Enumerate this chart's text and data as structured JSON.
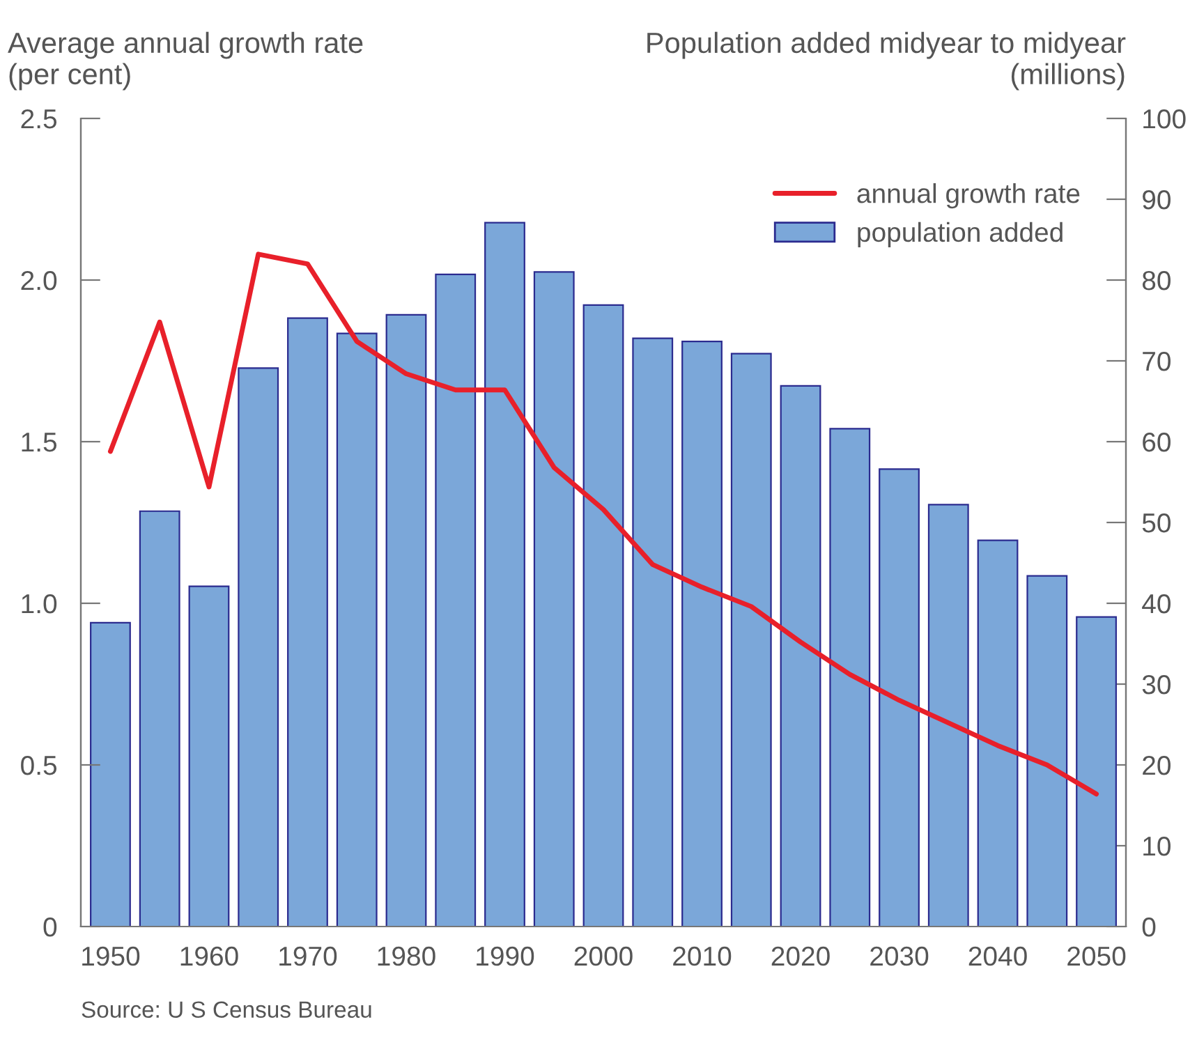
{
  "chart_data": {
    "type": "bar",
    "ylabel": "Average annual growth rate\n(per cent)",
    "y2label": "Population added midyear to midyear\n(millions)",
    "categories": [
      "1950",
      null,
      "1960",
      null,
      "1970",
      null,
      "1980",
      null,
      "1990",
      null,
      "2000",
      null,
      "2010",
      null,
      "2020",
      null,
      "2030",
      null,
      "2040",
      null,
      "2050"
    ],
    "series": [
      {
        "name": "annual growth rate",
        "type": "line",
        "color": "#e8202a",
        "values": [
          1.47,
          1.87,
          1.36,
          2.08,
          2.05,
          1.81,
          1.71,
          1.66,
          1.66,
          1.42,
          1.29,
          1.12,
          1.05,
          0.99,
          0.88,
          0.78,
          0.7,
          0.63,
          0.56,
          0.5,
          0.41
        ]
      },
      {
        "name": "population added",
        "axis": "y2",
        "color": "#7ba7d9",
        "values": [
          37.6,
          51.4,
          42.1,
          69.1,
          75.3,
          73.4,
          75.7,
          80.7,
          87.1,
          81.0,
          76.9,
          72.8,
          72.4,
          70.9,
          66.9,
          61.6,
          56.6,
          52.2,
          47.8,
          43.4,
          38.3
        ]
      }
    ],
    "ylim": [
      0,
      2.5
    ],
    "yticks": [
      0,
      0.5,
      {
        "value": 1,
        "label": "1.0"
      },
      1.5,
      {
        "value": 2,
        "label": "2.0"
      },
      2.5
    ],
    "y2lim": [
      0,
      100
    ],
    "y2ticks": [
      0,
      10,
      20,
      30,
      40,
      50,
      60,
      70,
      80,
      90,
      100
    ],
    "grid": false,
    "legend": "top right",
    "line_style": "solid",
    "marker": "none",
    "annotations": [
      "Source: U S Census Bureau"
    ]
  }
}
